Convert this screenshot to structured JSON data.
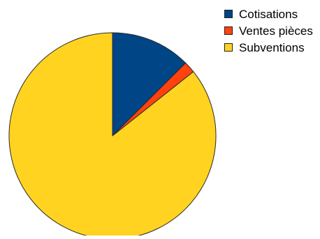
{
  "chart_data": {
    "type": "pie",
    "title": "",
    "legend_position": "top-right",
    "slices": [
      {
        "label": "Cotisations",
        "value": 12.5,
        "color": "#004586"
      },
      {
        "label": "Ventes pièces",
        "value": 1.8,
        "color": "#ff420e"
      },
      {
        "label": "Subventions",
        "value": 85.7,
        "color": "#ffd320"
      }
    ],
    "units": "percent"
  },
  "legend": {
    "items": [
      {
        "label": "Cotisations",
        "color": "#004586"
      },
      {
        "label": "Ventes pièces",
        "color": "#ff420e"
      },
      {
        "label": "Subventions",
        "color": "#ffd320"
      }
    ]
  }
}
